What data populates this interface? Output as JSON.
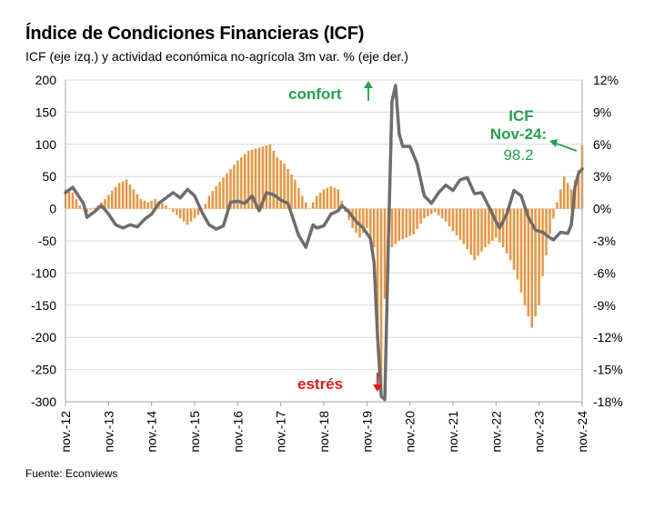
{
  "title": "Índice de Condiciones Financieras (ICF)",
  "subtitle": "ICF (eje izq.) y actividad económica no-agrícola 3m var. % (eje der.)",
  "source": "Fuente: Econviews",
  "colors": {
    "bars": "#f0923a",
    "line": "#6d6d6d",
    "green": "#21a34a",
    "red": "#e01b1b",
    "grid": "#d9d9d9",
    "axis": "#a6a6a6"
  },
  "annotations": {
    "confort": "confort",
    "estres": "estrés",
    "icf_label_1": "ICF",
    "icf_label_2": "Nov-24:",
    "icf_value": "98.2",
    "arrow_up_icon": "arrow-up-icon",
    "arrow_down_icon": "arrow-down-icon"
  },
  "chart_data": {
    "type": "bar+line",
    "title": "Índice de Condiciones Financieras (ICF)",
    "subtitle": "ICF (eje izq.) y actividad económica no-agrícola 3m var. % (eje der.)",
    "x_start": "2012-11",
    "x_end": "2024-11",
    "x_ticks": [
      "nov.-12",
      "nov.-13",
      "nov.-14",
      "nov.-15",
      "nov.-16",
      "nov.-17",
      "nov.-18",
      "nov.-19",
      "nov.-20",
      "nov.-21",
      "nov.-22",
      "nov.-23",
      "nov.-24"
    ],
    "y_left": {
      "min": -300,
      "max": 200,
      "step": 50,
      "ticks": [
        "200",
        "150",
        "100",
        "50",
        "0",
        "-50",
        "-100",
        "-150",
        "-200",
        "-250",
        "-300"
      ]
    },
    "y_right": {
      "min": -18,
      "max": 12,
      "step": 3,
      "ticks": [
        "12%",
        "9%",
        "6%",
        "3%",
        "0%",
        "-3%",
        "-6%",
        "-9%",
        "-12%",
        "-15%",
        "-18%"
      ]
    },
    "grid": "horizontal",
    "series": [
      {
        "name": "ICF",
        "type": "bar",
        "axis": "left",
        "anchors": [
          [
            "2012-11",
            30
          ],
          [
            "2013-01",
            25
          ],
          [
            "2013-03",
            5
          ],
          [
            "2013-05",
            -5
          ],
          [
            "2013-08",
            5
          ],
          [
            "2013-10",
            15
          ],
          [
            "2013-12",
            28
          ],
          [
            "2014-02",
            40
          ],
          [
            "2014-04",
            45
          ],
          [
            "2014-06",
            30
          ],
          [
            "2014-08",
            15
          ],
          [
            "2014-10",
            10
          ],
          [
            "2014-12",
            15
          ],
          [
            "2015-03",
            5
          ],
          [
            "2015-06",
            -10
          ],
          [
            "2015-09",
            -25
          ],
          [
            "2015-11",
            -15
          ],
          [
            "2016-01",
            -5
          ],
          [
            "2016-03",
            20
          ],
          [
            "2016-05",
            35
          ],
          [
            "2016-08",
            55
          ],
          [
            "2016-11",
            75
          ],
          [
            "2017-02",
            90
          ],
          [
            "2017-05",
            95
          ],
          [
            "2017-08",
            100
          ],
          [
            "2017-10",
            80
          ],
          [
            "2017-12",
            70
          ],
          [
            "2018-03",
            45
          ],
          [
            "2018-05",
            20
          ],
          [
            "2018-07",
            0
          ],
          [
            "2018-09",
            20
          ],
          [
            "2018-11",
            30
          ],
          [
            "2019-01",
            35
          ],
          [
            "2019-03",
            30
          ],
          [
            "2019-05",
            -5
          ],
          [
            "2019-07",
            -30
          ],
          [
            "2019-09",
            -45
          ],
          [
            "2019-11",
            -30
          ],
          [
            "2020-01",
            -60
          ],
          [
            "2020-02",
            -200
          ],
          [
            "2020-03",
            -290
          ],
          [
            "2020-04",
            -140
          ],
          [
            "2020-05",
            -100
          ],
          [
            "2020-06",
            -60
          ],
          [
            "2020-08",
            -50
          ],
          [
            "2020-10",
            -45
          ],
          [
            "2020-12",
            -40
          ],
          [
            "2021-03",
            -15
          ],
          [
            "2021-06",
            -5
          ],
          [
            "2021-09",
            -20
          ],
          [
            "2021-11",
            -35
          ],
          [
            "2022-02",
            -55
          ],
          [
            "2022-05",
            -80
          ],
          [
            "2022-08",
            -60
          ],
          [
            "2022-11",
            -45
          ],
          [
            "2023-01",
            -60
          ],
          [
            "2023-03",
            -80
          ],
          [
            "2023-05",
            -110
          ],
          [
            "2023-07",
            -150
          ],
          [
            "2023-09",
            -185
          ],
          [
            "2023-11",
            -150
          ],
          [
            "2023-12",
            -105
          ],
          [
            "2024-02",
            -40
          ],
          [
            "2024-04",
            10
          ],
          [
            "2024-06",
            50
          ],
          [
            "2024-08",
            30
          ],
          [
            "2024-10",
            60
          ],
          [
            "2024-11",
            98.2
          ]
        ]
      },
      {
        "name": "Actividad económica no-agrícola 3m var. %",
        "type": "line",
        "axis": "right",
        "anchors": [
          [
            "2012-11",
            1.5
          ],
          [
            "2013-01",
            2.0
          ],
          [
            "2013-03",
            1.0
          ],
          [
            "2013-04",
            0.5
          ],
          [
            "2013-05",
            -0.8
          ],
          [
            "2013-07",
            -0.3
          ],
          [
            "2013-09",
            0.3
          ],
          [
            "2013-11",
            -0.5
          ],
          [
            "2014-01",
            -1.5
          ],
          [
            "2014-03",
            -1.8
          ],
          [
            "2014-05",
            -1.5
          ],
          [
            "2014-07",
            -1.7
          ],
          [
            "2014-09",
            -1.0
          ],
          [
            "2014-11",
            -0.5
          ],
          [
            "2015-01",
            0.5
          ],
          [
            "2015-03",
            1.0
          ],
          [
            "2015-05",
            1.5
          ],
          [
            "2015-07",
            1.0
          ],
          [
            "2015-09",
            1.8
          ],
          [
            "2015-11",
            1.2
          ],
          [
            "2016-01",
            -0.3
          ],
          [
            "2016-03",
            -1.5
          ],
          [
            "2016-05",
            -1.9
          ],
          [
            "2016-07",
            -1.6
          ],
          [
            "2016-09",
            0.6
          ],
          [
            "2016-11",
            0.7
          ],
          [
            "2017-01",
            0.5
          ],
          [
            "2017-03",
            1.2
          ],
          [
            "2017-05",
            -0.2
          ],
          [
            "2017-07",
            1.5
          ],
          [
            "2017-09",
            1.3
          ],
          [
            "2017-11",
            0.8
          ],
          [
            "2018-01",
            0.5
          ],
          [
            "2018-02",
            -0.5
          ],
          [
            "2018-04",
            -2.5
          ],
          [
            "2018-06",
            -3.6
          ],
          [
            "2018-08",
            -1.5
          ],
          [
            "2018-09",
            -1.8
          ],
          [
            "2018-11",
            -1.6
          ],
          [
            "2019-01",
            -0.5
          ],
          [
            "2019-03",
            -0.2
          ],
          [
            "2019-04",
            0.3
          ],
          [
            "2019-06",
            -0.3
          ],
          [
            "2019-08",
            -1.2
          ],
          [
            "2019-10",
            -1.8
          ],
          [
            "2019-12",
            -2.8
          ],
          [
            "2020-01",
            -5.0
          ],
          [
            "2020-02",
            -12.0
          ],
          [
            "2020-03",
            -17.5
          ],
          [
            "2020-04",
            -17.8
          ],
          [
            "2020-05",
            -3.0
          ],
          [
            "2020-06",
            10.0
          ],
          [
            "2020-07",
            11.5
          ],
          [
            "2020-08",
            7.0
          ],
          [
            "2020-09",
            5.8
          ],
          [
            "2020-11",
            5.8
          ],
          [
            "2021-01",
            4.2
          ],
          [
            "2021-03",
            1.2
          ],
          [
            "2021-05",
            0.5
          ],
          [
            "2021-07",
            1.5
          ],
          [
            "2021-09",
            2.2
          ],
          [
            "2021-11",
            1.7
          ],
          [
            "2022-01",
            2.7
          ],
          [
            "2022-03",
            2.9
          ],
          [
            "2022-05",
            1.4
          ],
          [
            "2022-07",
            1.5
          ],
          [
            "2022-09",
            0.2
          ],
          [
            "2022-11",
            -1.2
          ],
          [
            "2022-12",
            -1.8
          ],
          [
            "2023-02",
            -0.5
          ],
          [
            "2023-04",
            1.7
          ],
          [
            "2023-06",
            1.2
          ],
          [
            "2023-08",
            -0.8
          ],
          [
            "2023-10",
            -2.0
          ],
          [
            "2023-12",
            -2.2
          ],
          [
            "2024-02",
            -2.7
          ],
          [
            "2024-03",
            -2.9
          ],
          [
            "2024-05",
            -2.2
          ],
          [
            "2024-07",
            -2.3
          ],
          [
            "2024-08",
            -1.5
          ],
          [
            "2024-09",
            2.0
          ],
          [
            "2024-10",
            3.3
          ],
          [
            "2024-11",
            3.7
          ]
        ]
      }
    ]
  }
}
